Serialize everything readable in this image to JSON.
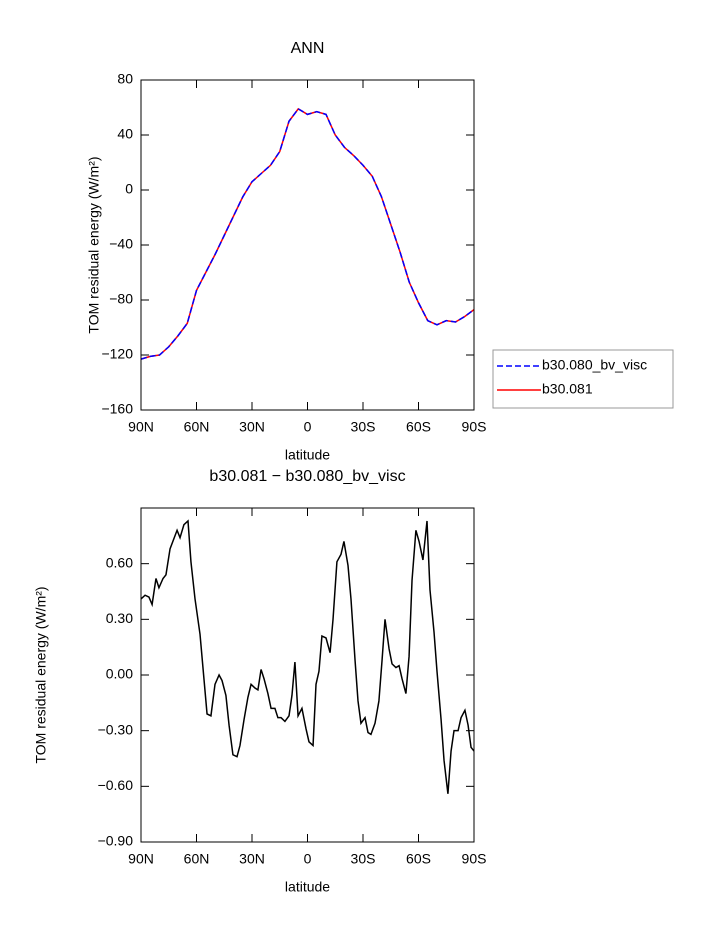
{
  "chart_data": [
    {
      "type": "line",
      "title": "ANN",
      "x_label": "latitude",
      "y_label": "TOM residual energy (W/m²)",
      "x": [
        90,
        85,
        80,
        75,
        70,
        65,
        60,
        55,
        50,
        45,
        40,
        35,
        30,
        25,
        20,
        15,
        10,
        5,
        0,
        -5,
        -10,
        -15,
        -20,
        -25,
        -30,
        -35,
        -40,
        -45,
        -50,
        -55,
        -60,
        -65,
        -70,
        -75,
        -80,
        -85,
        -90
      ],
      "series": [
        {
          "name": "b30.080_bv_visc",
          "color": "#0000ff",
          "line_style": "dashed",
          "values": [
            -123,
            -121,
            -120,
            -114,
            -106,
            -97,
            -73,
            -60,
            -47,
            -33,
            -19,
            -5,
            6,
            12,
            18,
            28,
            50,
            59,
            55,
            57,
            55,
            40,
            31,
            25,
            18,
            10,
            -5,
            -25,
            -45,
            -67,
            -82,
            -95,
            -98,
            -95,
            -96,
            -92,
            -87
          ]
        },
        {
          "name": "b30.081",
          "color": "#ff0000",
          "line_style": "solid",
          "values": [
            -123,
            -121,
            -120,
            -114,
            -106,
            -97,
            -73,
            -60,
            -47,
            -33,
            -19,
            -5,
            6,
            12,
            18,
            28,
            50,
            59,
            55,
            57,
            55,
            40,
            31,
            25,
            18,
            10,
            -5,
            -25,
            -45,
            -67,
            -82,
            -95,
            -98,
            -95,
            -96,
            -92,
            -87
          ]
        }
      ],
      "xlim": [
        90,
        -90
      ],
      "xticks": [
        {
          "value": 90,
          "label": "90N"
        },
        {
          "value": 60,
          "label": "60N"
        },
        {
          "value": 30,
          "label": "30N"
        },
        0,
        {
          "value": -30,
          "label": "30S"
        },
        {
          "value": -60,
          "label": "60S"
        },
        {
          "value": -90,
          "label": "90S"
        }
      ],
      "ylim": [
        -160,
        80
      ],
      "yticks": [
        80,
        40,
        0,
        {
          "value": -40,
          "label": "−40"
        },
        {
          "value": -80,
          "label": "−80"
        },
        {
          "value": -120,
          "label": "−120"
        },
        {
          "value": -160,
          "label": "−160"
        }
      ],
      "legend": "outside-right"
    },
    {
      "type": "line",
      "title": "b30.081 − b30.080_bv_visc",
      "x_label": "latitude",
      "y_label": "TOM residual energy (W/m²)",
      "x": [
        90,
        87.8,
        85.7,
        84,
        81.9,
        80.3,
        78.1,
        76.5,
        74.3,
        70.5,
        68.9,
        66.8,
        64.6,
        63,
        60.8,
        58.1,
        54.3,
        52.2,
        50,
        47.8,
        46.2,
        44.1,
        42.4,
        40.3,
        38.1,
        36.5,
        34.3,
        32.2,
        30.5,
        28.4,
        26.8,
        25.1,
        23.5,
        21.4,
        19.7,
        17.6,
        16,
        14.3,
        12.2,
        10,
        8.4,
        6.8,
        5.1,
        3,
        0.8,
        -0.8,
        -3,
        -4.6,
        -6.2,
        -7.8,
        -10,
        -12.2,
        -13.8,
        -15.9,
        -18.1,
        -19.7,
        -21.9,
        -23.5,
        -25.7,
        -27.3,
        -28.9,
        -31.1,
        -32.7,
        -34.3,
        -36.5,
        -38.6,
        -40.3,
        -41.9,
        -44.1,
        -45.7,
        -47.8,
        -49.5,
        -51.1,
        -53.2,
        -54.9,
        -56.5,
        -58.6,
        -60.3,
        -62.4,
        -64.6,
        -66.2,
        -68.4,
        -70,
        -72.2,
        -73.8,
        -75.9,
        -77.6,
        -79.2,
        -81.4,
        -83,
        -85.1,
        -86.8,
        -88.4,
        -90
      ],
      "values": [
        0.41,
        0.43,
        0.42,
        0.38,
        0.52,
        0.47,
        0.52,
        0.54,
        0.68,
        0.78,
        0.74,
        0.81,
        0.83,
        0.61,
        0.41,
        0.22,
        -0.21,
        -0.22,
        -0.05,
        0,
        -0.03,
        -0.11,
        -0.27,
        -0.43,
        -0.44,
        -0.38,
        -0.24,
        -0.12,
        -0.05,
        -0.07,
        -0.08,
        0.03,
        -0.02,
        -0.1,
        -0.18,
        -0.18,
        -0.23,
        -0.23,
        -0.25,
        -0.22,
        -0.11,
        0.07,
        -0.22,
        -0.18,
        -0.29,
        -0.36,
        -0.38,
        -0.05,
        0.02,
        0.21,
        0.2,
        0.12,
        0.3,
        0.61,
        0.65,
        0.72,
        0.59,
        0.41,
        0.08,
        -0.14,
        -0.26,
        -0.23,
        -0.31,
        -0.32,
        -0.26,
        -0.14,
        0.08,
        0.3,
        0.14,
        0.06,
        0.04,
        0.05,
        -0.02,
        -0.1,
        0.1,
        0.51,
        0.78,
        0.72,
        0.62,
        0.83,
        0.46,
        0.23,
        0.02,
        -0.24,
        -0.46,
        -0.64,
        -0.41,
        -0.3,
        -0.3,
        -0.23,
        -0.19,
        -0.27,
        -0.39,
        -0.41
      ],
      "color": "#000000",
      "xlim": [
        90,
        -90
      ],
      "xticks": [
        {
          "value": 90,
          "label": "90N"
        },
        {
          "value": 60,
          "label": "60N"
        },
        {
          "value": 30,
          "label": "30N"
        },
        0,
        {
          "value": -30,
          "label": "30S"
        },
        {
          "value": -60,
          "label": "60S"
        },
        {
          "value": -90,
          "label": "90S"
        }
      ],
      "ylim": [
        -0.9,
        0.9
      ],
      "yticks": [
        {
          "value": 0.6,
          "label": "0.60"
        },
        {
          "value": 0.3,
          "label": "0.30"
        },
        {
          "value": 0,
          "label": "0.00"
        },
        {
          "value": -0.3,
          "label": "−0.30"
        },
        {
          "value": -0.6,
          "label": "−0.60"
        },
        {
          "value": -0.9,
          "label": "−0.90"
        }
      ]
    }
  ]
}
